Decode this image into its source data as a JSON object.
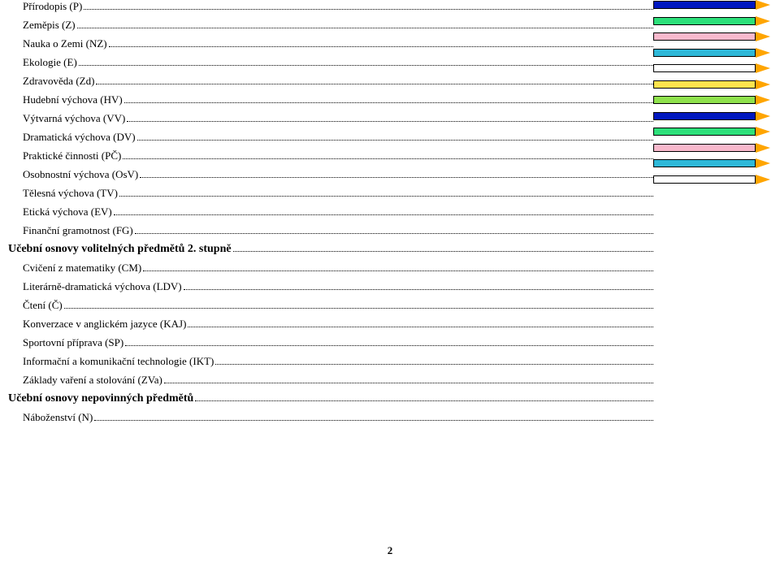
{
  "toc": [
    {
      "type": "item",
      "label": "Přírodopis (P)"
    },
    {
      "type": "item",
      "label": "Zeměpis (Z)"
    },
    {
      "type": "item",
      "label": "Nauka o Zemi (NZ)"
    },
    {
      "type": "item",
      "label": "Ekologie (E)"
    },
    {
      "type": "item",
      "label": "Zdravověda (Zd)"
    },
    {
      "type": "item",
      "label": "Hudební výchova (HV)"
    },
    {
      "type": "item",
      "label": "Výtvarná výchova (VV)"
    },
    {
      "type": "item",
      "label": "Dramatická výchova (DV)"
    },
    {
      "type": "item",
      "label": "Praktické činnosti (PČ)"
    },
    {
      "type": "item",
      "label": "Osobnostní výchova (OsV)"
    },
    {
      "type": "item",
      "label": "Tělesná výchova (TV)"
    },
    {
      "type": "item",
      "label": "Etická výchova (EV)"
    },
    {
      "type": "item",
      "label": "Finanční gramotnost (FG)"
    },
    {
      "type": "heading",
      "label": "Učební osnovy volitelných předmětů 2. stupně"
    },
    {
      "type": "item",
      "label": "Cvičení z matematiky (CM)"
    },
    {
      "type": "item",
      "label": "Literárně-dramatická výchova (LDV)"
    },
    {
      "type": "item",
      "label": "Čtení (Č)"
    },
    {
      "type": "item",
      "label": "Konverzace v anglickém jazyce (KAJ)"
    },
    {
      "type": "item",
      "label": "Sportovní příprava (SP)"
    },
    {
      "type": "item",
      "label": "Informační a komunikační technologie (IKT)"
    },
    {
      "type": "item",
      "label": "Základy vaření a stolování (ZVa)"
    },
    {
      "type": "heading",
      "label": "Učební osnovy nepovinných předmětů"
    },
    {
      "type": "item",
      "label": "Náboženství (N)"
    }
  ],
  "pencils": [
    {
      "body": "#0018c0",
      "tip": "#ffa500"
    },
    {
      "body": "#2de07a",
      "tip": "#ffa500"
    },
    {
      "body": "#f8b8cc",
      "tip": "#ffa500"
    },
    {
      "body": "#2eb8d8",
      "tip": "#ffa500"
    },
    {
      "body": "#ffffff",
      "tip": "#ffa500"
    },
    {
      "body": "#ffe34d",
      "tip": "#ffa500"
    },
    {
      "body": "#8fe24d",
      "tip": "#ffa500"
    },
    {
      "body": "#0018c0",
      "tip": "#ffa500"
    },
    {
      "body": "#2de07a",
      "tip": "#ffa500"
    },
    {
      "body": "#f8b8cc",
      "tip": "#ffa500"
    },
    {
      "body": "#2eb8d8",
      "tip": "#ffa500"
    },
    {
      "body": "#ffffff",
      "tip": "#ffa500"
    }
  ],
  "page_number": "2"
}
